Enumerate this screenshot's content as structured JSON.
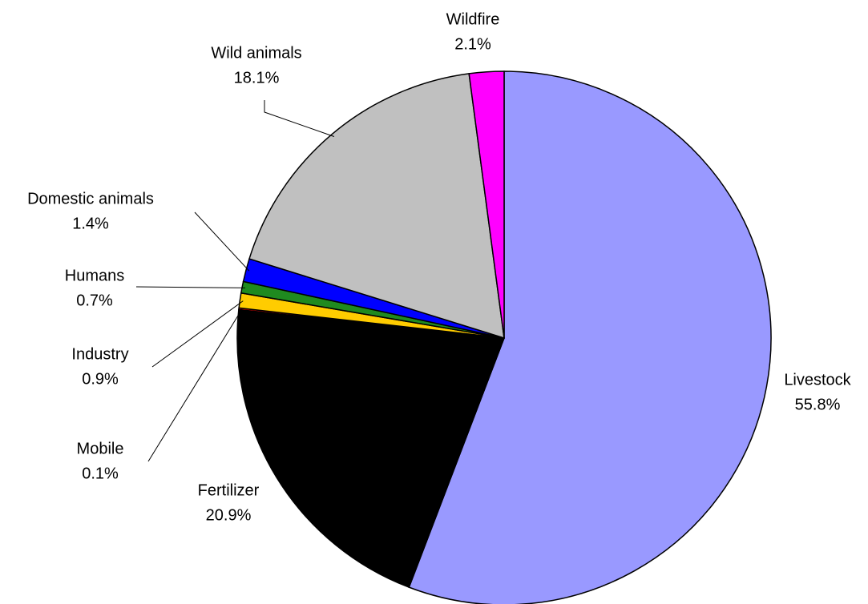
{
  "chart_data": {
    "type": "pie",
    "categories": [
      "Livestock",
      "Fertilizer",
      "Mobile",
      "Industry",
      "Humans",
      "Domestic animals",
      "Wild animals",
      "Wildfire"
    ],
    "values": [
      55.8,
      20.9,
      0.1,
      0.9,
      0.7,
      1.4,
      18.1,
      2.1
    ],
    "value_labels": [
      "55.8%",
      "20.9%",
      "0.1%",
      "0.9%",
      "0.7%",
      "1.4%",
      "18.1%",
      "2.1%"
    ],
    "colors": [
      "#9999ff",
      "#000000",
      "#ff0000",
      "#ffcc00",
      "#1f8a1f",
      "#0000ff",
      "#c0c0c0",
      "#ff00ff"
    ]
  }
}
